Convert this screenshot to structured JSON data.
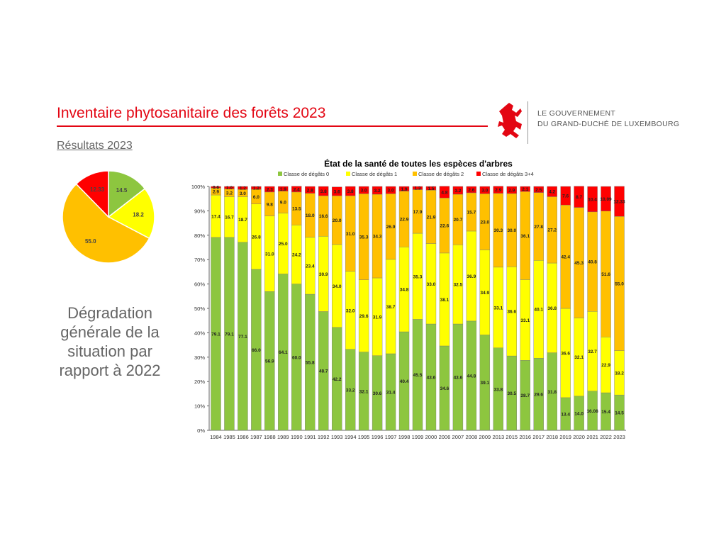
{
  "header": {
    "title": "Inventaire phytosanitaire des forêts 2023",
    "subtitle": "Résultats 2023",
    "gov_line1": "LE GOUVERNEMENT",
    "gov_line2": "DU GRAND-DUCHÉ DE LUXEMBOURG",
    "logo": "red-lion-emblem-icon"
  },
  "message": "Dégradation générale de la situation par rapport à 2022",
  "colors": {
    "c0": "#8dc63f",
    "c1": "#ffff00",
    "c2": "#ffc000",
    "c34": "#ff0000",
    "accent": "#e30613"
  },
  "chart_data": [
    {
      "type": "pie",
      "labels": [
        "Classe de dégâts 0",
        "Classe de dégâts 1",
        "Classe de dégâts 2",
        "Classe de dégâts 3+4"
      ],
      "values": [
        14.5,
        18.2,
        55.0,
        12.33
      ],
      "value_labels": [
        "14.5",
        "18.2",
        "55.0",
        "12.33"
      ]
    },
    {
      "type": "bar",
      "stacked": true,
      "title": "État de la santé de toutes les espèces d'arbres",
      "legend_position": "top",
      "ylim": [
        0,
        100
      ],
      "yticks": [
        "0%",
        "10%",
        "20%",
        "30%",
        "40%",
        "50%",
        "60%",
        "70%",
        "80%",
        "90%",
        "100%"
      ],
      "categories": [
        "1984",
        "1985",
        "1986",
        "1987",
        "1988",
        "1989",
        "1990",
        "1991",
        "1992",
        "1993",
        "1994",
        "1995",
        "1996",
        "1997",
        "1998",
        "1999",
        "2000",
        "2006",
        "2007",
        "2008",
        "2009",
        "2013",
        "2015",
        "2016",
        "2017",
        "2018",
        "2019",
        "2020",
        "2021",
        "2022",
        "2023"
      ],
      "series": [
        {
          "name": "Classe de dégâts 0",
          "values": [
            79.1,
            79.1,
            77.1,
            66.0,
            56.9,
            64.1,
            60.0,
            55.8,
            48.7,
            42.2,
            33.2,
            32.1,
            30.6,
            31.4,
            40.4,
            45.5,
            43.6,
            34.6,
            43.6,
            44.8,
            39.1,
            33.8,
            30.5,
            28.7,
            29.6,
            31.8,
            13.4,
            14.0,
            16.08,
            15.4,
            14.5
          ]
        },
        {
          "name": "Classe de dégâts 1",
          "values": [
            17.4,
            16.7,
            18.7,
            26.8,
            31.0,
            25.0,
            24.2,
            23.4,
            30.9,
            34.0,
            32.0,
            29.6,
            31.9,
            38.7,
            34.8,
            35.3,
            33.0,
            38.1,
            32.5,
            36.9,
            34.9,
            33.1,
            36.6,
            33.1,
            40.1,
            36.8,
            36.6,
            32.1,
            32.7,
            22.9,
            18.2
          ]
        },
        {
          "name": "Classe de dégâts 2",
          "values": [
            2.9,
            3.2,
            3.0,
            6.0,
            9.8,
            9.0,
            13.5,
            18.0,
            16.6,
            20.0,
            31.0,
            35.3,
            34.3,
            26.9,
            22.9,
            17.9,
            21.9,
            22.6,
            20.7,
            15.7,
            23.0,
            30.3,
            30.0,
            36.1,
            27.8,
            27.2,
            42.4,
            45.3,
            40.8,
            51.6,
            55.0
          ]
        },
        {
          "name": "Classe de dégâts 3+4",
          "values": [
            0.6,
            1.0,
            1.2,
            1.2,
            2.3,
            1.9,
            2.4,
            2.8,
            3.8,
            3.6,
            3.8,
            3.0,
            3.2,
            3.0,
            1.9,
            1.3,
            1.5,
            4.8,
            3.2,
            2.6,
            3.0,
            2.9,
            2.9,
            2.1,
            2.5,
            4.2,
            7.6,
            8.7,
            10.4,
            10.09,
            12.33
          ]
        }
      ]
    }
  ]
}
